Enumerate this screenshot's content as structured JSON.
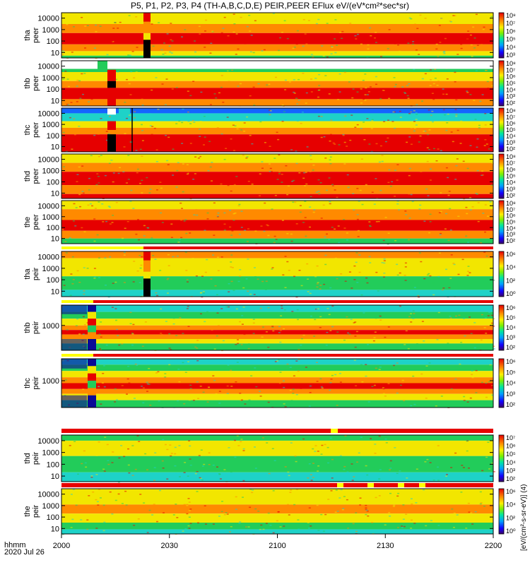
{
  "title": "P5, P1, P2, P3, P4 (TH-A,B,C,D,E) PEIR,PEER EFlux eV/(eV*cm²*sec*sr)",
  "time_axis": {
    "label_line1": "hhmm",
    "label_line2": "2020 Jul 26",
    "ticks": [
      "2000",
      "2030",
      "2100",
      "2130",
      "2200"
    ]
  },
  "colorbar_label": "[eV/(cm²-s-sr-eV)] (4)",
  "colors": {
    "hot": "#e60000",
    "orange": "#ff8a00",
    "yellow": "#f2e600",
    "green": "#22cc5a",
    "cyan": "#1ed2c8",
    "blue": "#1464ff",
    "navy": "#0a0a96",
    "black": "#000000"
  },
  "chart_data": [
    {
      "type": "heatmap",
      "name": "tha peer",
      "ylabel": [
        "tha",
        "peer"
      ],
      "yticks": [
        "10000",
        "1000",
        "100",
        "10"
      ],
      "cbar_ticks": [
        "10⁸",
        "10⁷",
        "10⁶",
        "10⁵",
        "10⁴",
        "10³"
      ],
      "profile": "peer_a"
    },
    {
      "type": "heatmap",
      "name": "thb peer",
      "ylabel": [
        "thb",
        "peer"
      ],
      "yticks": [
        "10000",
        "1000",
        "100",
        "10"
      ],
      "cbar_ticks": [
        "10⁸",
        "10⁷",
        "10⁶",
        "10⁵",
        "10⁴",
        "10³",
        "10²"
      ],
      "profile": "peer_b"
    },
    {
      "type": "heatmap",
      "name": "thc peer",
      "ylabel": [
        "thc",
        "peer"
      ],
      "yticks": [
        "10000",
        "1000",
        "100",
        "10"
      ],
      "cbar_ticks": [
        "10⁸",
        "10⁷",
        "10⁶",
        "10⁵",
        "10⁴",
        "10³",
        "10²"
      ],
      "profile": "peer_c"
    },
    {
      "type": "heatmap",
      "name": "thd peer",
      "ylabel": [
        "thd",
        "peer"
      ],
      "yticks": [
        "10000",
        "1000",
        "100",
        "10"
      ],
      "cbar_ticks": [
        "10⁸",
        "10⁷",
        "10⁶",
        "10⁵",
        "10⁴",
        "10³",
        "10²"
      ],
      "profile": "peer_d"
    },
    {
      "type": "heatmap",
      "name": "the peer",
      "ylabel": [
        "the",
        "peer"
      ],
      "yticks": [
        "10000",
        "1000",
        "100",
        "10"
      ],
      "cbar_ticks": [
        "10⁸",
        "10⁷",
        "10⁶",
        "10⁵",
        "10⁴",
        "10³",
        "10²"
      ],
      "profile": "peer_e"
    },
    {
      "type": "heatmap",
      "name": "tha peir",
      "ylabel": [
        "tha",
        "peir"
      ],
      "yticks": [
        "10000",
        "1000",
        "100",
        "10"
      ],
      "cbar_ticks": [
        "10⁶",
        "10⁴",
        "10²",
        "10⁰"
      ],
      "profile": "peir_a"
    },
    {
      "type": "heatmap",
      "name": "thb peir",
      "ylabel": [
        "thb",
        "peir"
      ],
      "yticks": [
        "1000"
      ],
      "cbar_ticks": [
        "10⁶",
        "10⁵",
        "10⁴",
        "10³",
        "10²"
      ],
      "profile": "peir_b"
    },
    {
      "type": "heatmap",
      "name": "thc peir",
      "ylabel": [
        "thc",
        "peir"
      ],
      "yticks": [
        "1000"
      ],
      "cbar_ticks": [
        "10⁶",
        "10⁵",
        "10⁴",
        "10³",
        "10²"
      ],
      "profile": "peir_c"
    },
    {
      "type": "heatmap",
      "name": "thd peir",
      "ylabel": [
        "thd",
        "peir"
      ],
      "yticks": [
        "10000",
        "1000",
        "100",
        "10"
      ],
      "cbar_ticks": [
        "10⁷",
        "10⁶",
        "10⁵",
        "10⁴",
        "10³",
        "10²"
      ],
      "profile": "peir_d"
    },
    {
      "type": "heatmap",
      "name": "the peir",
      "ylabel": [
        "the",
        "peir"
      ],
      "yticks": [
        "10000",
        "1000",
        "100",
        "10"
      ],
      "cbar_ticks": [
        "10⁶",
        "10⁴",
        "10²",
        "10⁰"
      ],
      "profile": "peir_e"
    }
  ]
}
